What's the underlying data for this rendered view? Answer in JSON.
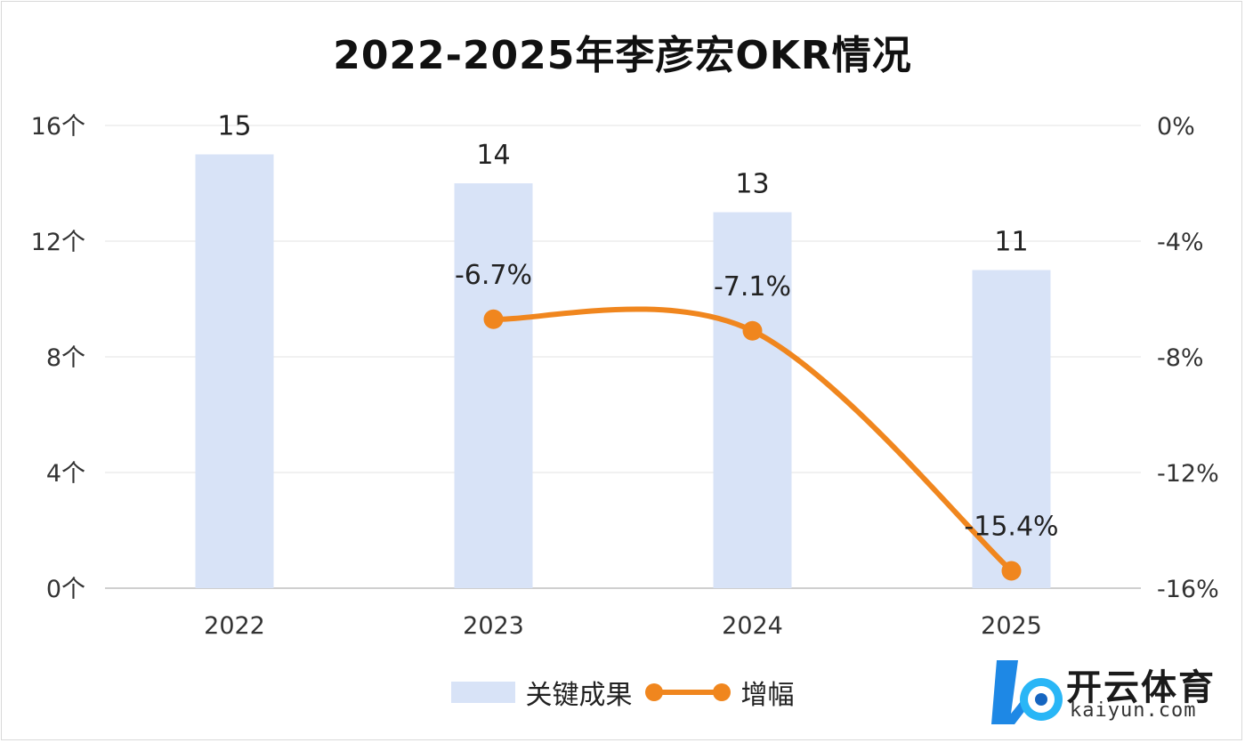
{
  "chart_data": {
    "type": "bar",
    "title": "2022-2025年李彦宏OKR情况",
    "categories": [
      "2022",
      "2023",
      "2024",
      "2025"
    ],
    "series": [
      {
        "name": "关键成果",
        "type": "bar",
        "axis": "left",
        "values": [
          15,
          14,
          13,
          11
        ],
        "data_labels": [
          "15",
          "14",
          "13",
          "11"
        ],
        "color": "#d8e3f7"
      },
      {
        "name": "增幅",
        "type": "line",
        "axis": "right",
        "smooth": true,
        "values": [
          null,
          -6.7,
          -7.1,
          -15.4
        ],
        "data_labels": [
          "",
          "-6.7%",
          "-7.1%",
          "-15.4%"
        ],
        "color": "#f0861e"
      }
    ],
    "y_left": {
      "min": 0,
      "max": 16,
      "ticks": [
        0,
        4,
        8,
        12,
        16
      ],
      "tick_labels": [
        "0个",
        "4个",
        "8个",
        "12个",
        "16个"
      ]
    },
    "y_right": {
      "min": -16,
      "max": 0,
      "ticks": [
        -16,
        -12,
        -8,
        -4,
        0
      ],
      "tick_labels": [
        "-16%",
        "-12%",
        "-8%",
        "-4%",
        "0%"
      ]
    },
    "grid": true,
    "legend_position": "bottom"
  },
  "watermark": {
    "name_cn": "开云体育",
    "url": "kaiyun.com",
    "colors": {
      "primary": "#1e88e5",
      "accent": "#29b6f6"
    }
  }
}
